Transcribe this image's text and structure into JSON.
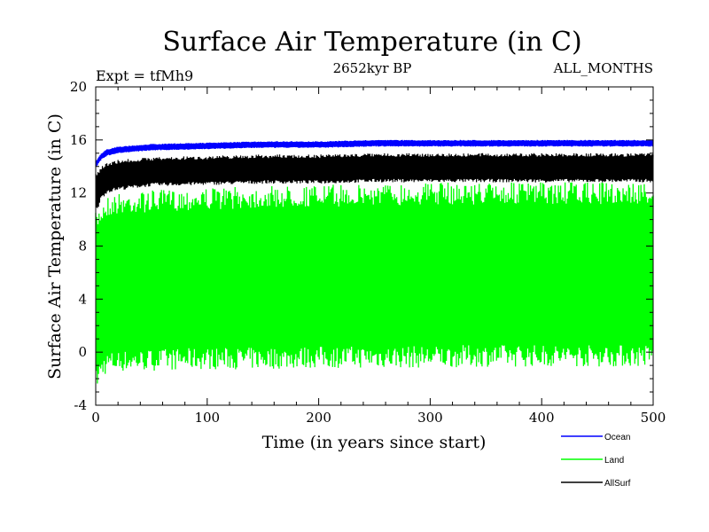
{
  "chart_data": {
    "type": "line",
    "title": "Surface Air Temperature (in C)",
    "subtitle": "2652kyr BP",
    "expt_label": "Expt = tfMh9",
    "months_label": "ALL_MONTHS",
    "xlabel": "Time (in years since start)",
    "ylabel": "Surface Air Temperature (in C)",
    "xlim": [
      0,
      500
    ],
    "ylim": [
      -4,
      20
    ],
    "x_ticks": [
      "0",
      "100",
      "200",
      "300",
      "400",
      "500"
    ],
    "y_ticks": [
      "-4",
      "0",
      "4",
      "8",
      "12",
      "16",
      "20"
    ],
    "series": [
      {
        "name": "Ocean",
        "color": "#0000ff",
        "x": [
          0,
          5,
          10,
          20,
          50,
          100,
          150,
          200,
          250,
          300,
          350,
          400,
          450,
          500
        ],
        "lower": [
          13.9,
          14.5,
          14.8,
          15.0,
          15.2,
          15.3,
          15.4,
          15.4,
          15.5,
          15.5,
          15.5,
          15.5,
          15.5,
          15.5
        ],
        "upper": [
          14.4,
          15.0,
          15.3,
          15.5,
          15.7,
          15.8,
          15.9,
          15.9,
          16.0,
          16.0,
          16.0,
          16.0,
          16.0,
          16.0
        ]
      },
      {
        "name": "Land",
        "color": "#00ff00",
        "x": [
          0,
          5,
          10,
          20,
          50,
          100,
          150,
          200,
          250,
          300,
          350,
          400,
          450,
          500
        ],
        "lower": [
          -3.0,
          -2.0,
          -1.6,
          -1.5,
          -1.4,
          -1.3,
          -1.3,
          -1.2,
          -1.2,
          -1.2,
          -1.1,
          -1.1,
          -1.1,
          -1.1
        ],
        "upper": [
          10.5,
          11.3,
          11.8,
          12.0,
          12.2,
          12.4,
          12.5,
          12.6,
          12.7,
          12.8,
          12.8,
          12.8,
          12.8,
          12.8
        ]
      },
      {
        "name": "AllSurf",
        "color": "#000000",
        "x": [
          0,
          5,
          10,
          20,
          50,
          100,
          150,
          200,
          250,
          300,
          350,
          400,
          450,
          500
        ],
        "lower": [
          10.5,
          11.5,
          12.0,
          12.2,
          12.5,
          12.6,
          12.7,
          12.7,
          12.8,
          12.8,
          12.8,
          12.8,
          12.8,
          12.8
        ],
        "upper": [
          13.5,
          14.0,
          14.3,
          14.5,
          14.7,
          14.8,
          14.9,
          14.9,
          15.0,
          15.0,
          15.0,
          15.0,
          15.0,
          15.0
        ]
      }
    ],
    "legend_position": "bottom-right"
  }
}
